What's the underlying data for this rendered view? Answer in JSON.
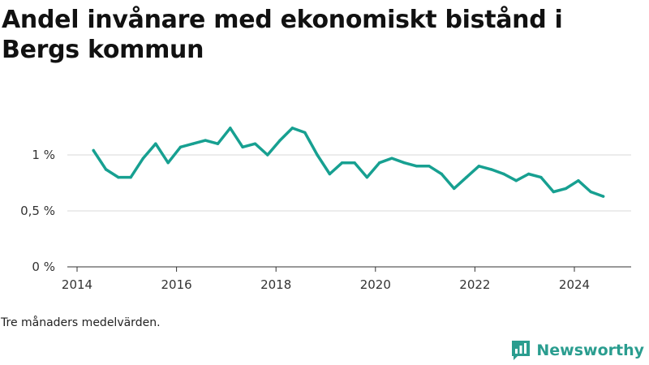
{
  "title": "Andel invånare med ekonomiskt bistånd i Bergs kommun",
  "note": "Tre månaders medelvärden.",
  "brand": {
    "name": "Newsworthy",
    "icon": "newsworthy-logo-icon",
    "color": "#2a9d8f"
  },
  "chart_data": {
    "type": "line",
    "title": "Andel invånare med ekonomiskt bistånd i Bergs kommun",
    "xlabel": "",
    "ylabel": "",
    "x_ticks": [
      "2014",
      "2016",
      "2018",
      "2020",
      "2022",
      "2024"
    ],
    "y_ticks": [
      "0 %",
      "0,5 %",
      "1 %"
    ],
    "ylim": [
      0,
      1.4
    ],
    "xlim": [
      2014,
      2025.1
    ],
    "grid": true,
    "line_color": "#17a091",
    "series": [
      {
        "x": [
          2014.33,
          2014.58,
          2014.83,
          2015.08,
          2015.33,
          2015.58,
          2015.83,
          2016.08,
          2016.33,
          2016.58,
          2016.83,
          2017.08,
          2017.33,
          2017.58,
          2017.83,
          2018.08,
          2018.33,
          2018.58,
          2018.83,
          2019.08,
          2019.33,
          2019.58,
          2019.83,
          2020.08,
          2020.33,
          2020.58,
          2020.83,
          2021.08,
          2021.33,
          2021.58,
          2021.83,
          2022.08,
          2022.33,
          2022.58,
          2022.83,
          2023.08,
          2023.33,
          2023.58,
          2023.83,
          2024.08,
          2024.33,
          2024.58
        ],
        "values": [
          1.04,
          0.87,
          0.8,
          0.8,
          0.97,
          1.1,
          0.93,
          1.07,
          1.1,
          1.13,
          1.1,
          1.24,
          1.07,
          1.1,
          1.0,
          1.13,
          1.24,
          1.2,
          1.0,
          0.83,
          0.93,
          0.93,
          0.8,
          0.93,
          0.97,
          0.93,
          0.9,
          0.9,
          0.83,
          0.7,
          0.8,
          0.9,
          0.87,
          0.83,
          0.77,
          0.83,
          0.8,
          0.67,
          0.7,
          0.77,
          0.67,
          0.63
        ]
      }
    ]
  }
}
